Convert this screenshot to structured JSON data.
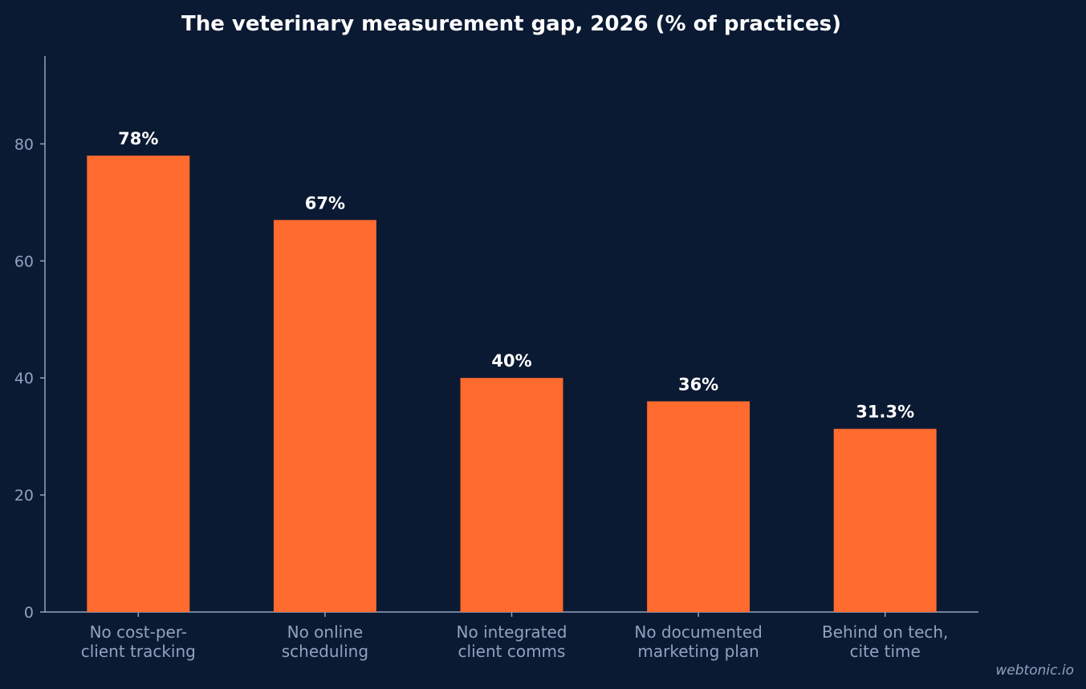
{
  "chart_data": {
    "type": "bar",
    "title": "The veterinary measurement gap, 2026 (% of practices)",
    "xlabel": "",
    "ylabel": "",
    "categories": [
      [
        "No cost-per-",
        "client tracking"
      ],
      [
        "No online",
        "scheduling"
      ],
      [
        "No integrated",
        "client comms"
      ],
      [
        "No documented",
        "marketing plan"
      ],
      [
        "Behind on tech,",
        "cite time"
      ]
    ],
    "values": [
      78,
      67,
      40,
      36,
      31.3
    ],
    "value_labels": [
      "78%",
      "67%",
      "40%",
      "36%",
      "31.3%"
    ],
    "ylim": [
      0,
      95
    ],
    "yticks": [
      0,
      20,
      40,
      60,
      80
    ],
    "grid": false,
    "legend": "none",
    "colors": {
      "background": "#0b1a33",
      "bar": "#ff6b2e",
      "axis": "#8fa3bf"
    }
  },
  "watermark": "webtonic.io"
}
